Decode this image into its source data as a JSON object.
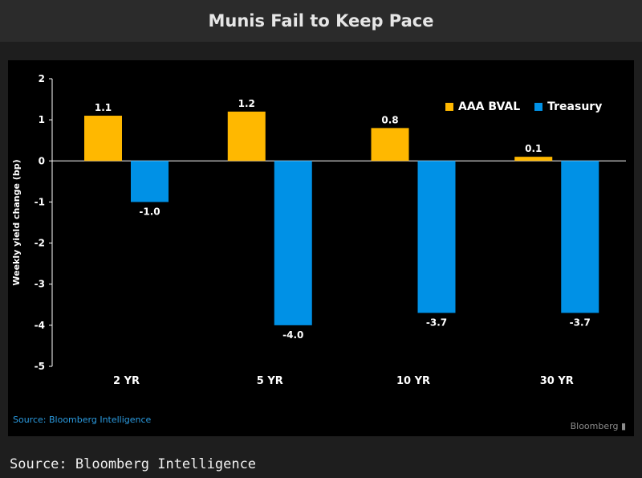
{
  "header": {
    "title": "Munis Fail to Keep Pace"
  },
  "chart_data": {
    "type": "bar",
    "categories": [
      "2 YR",
      "5 YR",
      "10 YR",
      "30 YR"
    ],
    "series": [
      {
        "name": "AAA BVAL",
        "color": "#ffb800",
        "values": [
          1.1,
          1.2,
          0.8,
          0.1
        ]
      },
      {
        "name": "Treasury",
        "color": "#0091e6",
        "values": [
          -1.0,
          -4.0,
          -3.7,
          -3.7
        ]
      }
    ],
    "data_labels": [
      [
        "1.1",
        "1.2",
        "0.8",
        "0.1"
      ],
      [
        "-1.0",
        "-4.0",
        "-3.7",
        "-3.7"
      ]
    ],
    "ylabel": "Weekly yield change (bp)",
    "ylim": [
      -5,
      2
    ],
    "yticks": [
      2,
      1,
      0,
      -1,
      -2,
      -3,
      -4,
      -5
    ],
    "legend": "top-right",
    "grid": false
  },
  "source_inner": "Source: Bloomberg Intelligence",
  "brand": "Bloomberg",
  "footer": {
    "source": "Source: Bloomberg Intelligence"
  }
}
